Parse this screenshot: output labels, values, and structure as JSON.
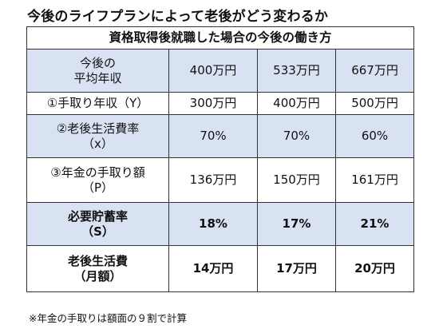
{
  "title": "今後のライフプランによって老後がどう変わるか",
  "table": {
    "caption": "資格取得後就職した場合の今後の働き方",
    "rows": [
      {
        "label": "今後の\n平均年収",
        "values": [
          "400万円",
          "533万円",
          "667万円"
        ]
      },
      {
        "label": "①手取り年収（Y）",
        "values": [
          "300万円",
          "400万円",
          "500万円"
        ]
      },
      {
        "label": "②老後生活費率\n（x）",
        "values": [
          "70%",
          "70%",
          "60%"
        ]
      },
      {
        "label": "③年金の手取り額\n（P）",
        "values": [
          "136万円",
          "150万円",
          "161万円"
        ]
      },
      {
        "label": "必要貯蓄率\n（S）",
        "values": [
          "18%",
          "17%",
          "21%"
        ]
      },
      {
        "label": "老後生活費\n（月額）",
        "values": [
          "14万円",
          "17万円",
          "20万円"
        ]
      }
    ]
  },
  "footnote": "※年金の手取りは額面の９割で計算",
  "colors": {
    "shaded_row": "#d9e2f3",
    "border": "#333333"
  }
}
